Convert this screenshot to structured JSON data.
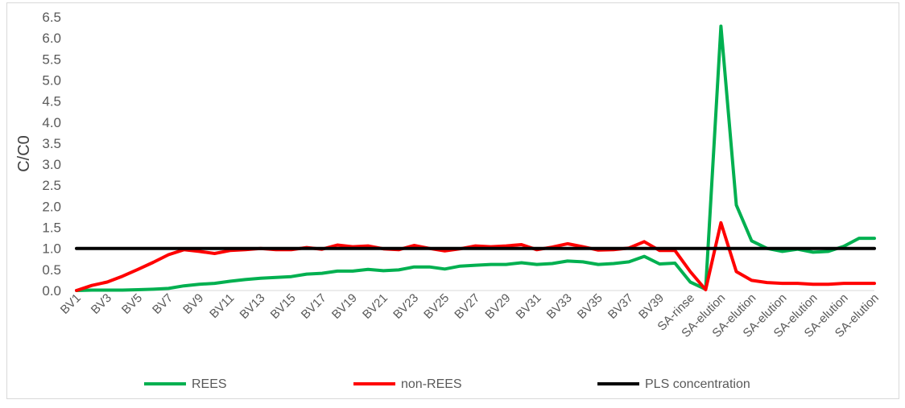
{
  "chart_data": {
    "type": "line",
    "title": "",
    "xlabel": "",
    "ylabel": "C/C0",
    "ylim": [
      0,
      6.5
    ],
    "ytick_step": 0.5,
    "ytick_labels": [
      "0.0",
      "0.5",
      "1.0",
      "1.5",
      "2.0",
      "2.5",
      "3.0",
      "3.5",
      "4.0",
      "4.5",
      "5.0",
      "5.5",
      "6.0",
      "6.5"
    ],
    "grid": false,
    "legend_position": "bottom",
    "categories": [
      "BV1",
      "BV2",
      "BV3",
      "BV4",
      "BV5",
      "BV6",
      "BV7",
      "BV8",
      "BV9",
      "BV10",
      "BV11",
      "BV12",
      "BV13",
      "BV14",
      "BV15",
      "BV16",
      "BV17",
      "BV18",
      "BV19",
      "BV20",
      "BV21",
      "BV22",
      "BV23",
      "BV24",
      "BV25",
      "BV26",
      "BV27",
      "BV28",
      "BV29",
      "BV30",
      "BV31",
      "BV32",
      "BV33",
      "BV34",
      "BV35",
      "BV36",
      "BV37",
      "BV38",
      "BV39",
      "BV40",
      "SA-rinse",
      "SA-rinse",
      "SA-elution",
      "SA-elution",
      "SA-elution",
      "SA-elution",
      "SA-elution",
      "SA-elution",
      "SA-elution",
      "SA-elution",
      "SA-elution",
      "SA-elution",
      "SA-elution"
    ],
    "x_tick_labels": [
      "BV1",
      "BV3",
      "BV5",
      "BV7",
      "BV9",
      "BV11",
      "BV13",
      "BV15",
      "BV17",
      "BV19",
      "BV21",
      "BV23",
      "BV25",
      "BV27",
      "BV29",
      "BV31",
      "BV33",
      "BV35",
      "BV37",
      "BV39",
      "SA-rinse",
      "SA-elution",
      "SA-elution",
      "SA-elution",
      "SA-elution",
      "SA-elution",
      "SA-elution"
    ],
    "series": [
      {
        "name": "REES",
        "color": "#00b050",
        "values": [
          0,
          0.01,
          0.01,
          0.01,
          0.02,
          0.03,
          0.05,
          0.11,
          0.15,
          0.17,
          0.22,
          0.26,
          0.29,
          0.31,
          0.33,
          0.39,
          0.41,
          0.46,
          0.46,
          0.5,
          0.47,
          0.49,
          0.56,
          0.56,
          0.51,
          0.58,
          0.6,
          0.62,
          0.62,
          0.66,
          0.62,
          0.64,
          0.7,
          0.68,
          0.62,
          0.64,
          0.68,
          0.81,
          0.63,
          0.65,
          0.2,
          0.03,
          6.28,
          2.03,
          1.18,
          1.0,
          0.93,
          0.98,
          0.91,
          0.93,
          1.05,
          1.24,
          1.24
        ]
      },
      {
        "name": "non-REES",
        "color": "#ff0000",
        "values": [
          0,
          0.12,
          0.2,
          0.34,
          0.5,
          0.67,
          0.85,
          0.97,
          0.93,
          0.88,
          0.95,
          0.97,
          1.0,
          0.97,
          0.97,
          1.02,
          0.98,
          1.08,
          1.04,
          1.06,
          0.99,
          0.97,
          1.07,
          1.0,
          0.94,
          0.99,
          1.06,
          1.04,
          1.06,
          1.09,
          0.97,
          1.03,
          1.11,
          1.04,
          0.96,
          0.97,
          1.01,
          1.16,
          0.95,
          0.95,
          0.45,
          0.02,
          1.61,
          0.45,
          0.24,
          0.19,
          0.17,
          0.17,
          0.15,
          0.15,
          0.17,
          0.17,
          0.17
        ]
      },
      {
        "name": "PLS concentration",
        "color": "#000000",
        "values": [
          1,
          1,
          1,
          1,
          1,
          1,
          1,
          1,
          1,
          1,
          1,
          1,
          1,
          1,
          1,
          1,
          1,
          1,
          1,
          1,
          1,
          1,
          1,
          1,
          1,
          1,
          1,
          1,
          1,
          1,
          1,
          1,
          1,
          1,
          1,
          1,
          1,
          1,
          1,
          1,
          1,
          1,
          1,
          1,
          1,
          1,
          1,
          1,
          1,
          1,
          1,
          1,
          1
        ]
      }
    ]
  }
}
